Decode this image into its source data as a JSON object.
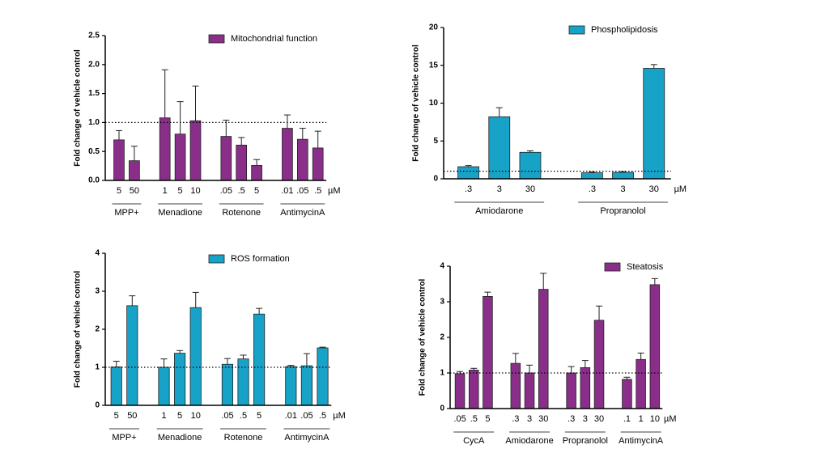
{
  "chart_data": [
    {
      "type": "bar",
      "series_name": "Mitochondrial function",
      "color": "#8a2f89",
      "y_label": "Fold change of vehicle control",
      "x_unit": "µM",
      "ylim": [
        0,
        2.5
      ],
      "yticks": [
        {
          "value": 0,
          "label": "0.0"
        },
        0.5,
        {
          "value": 1,
          "label": "1.0"
        },
        1.5,
        {
          "value": 2,
          "label": "2.0"
        },
        2.5
      ],
      "reference_line": 1,
      "groups": [
        {
          "name": "MPP+",
          "categories": [
            "5",
            "50"
          ],
          "values": [
            0.7,
            0.34
          ],
          "errors": [
            0.16,
            0.25
          ]
        },
        {
          "name": "Menadione",
          "categories": [
            "1",
            "5",
            "10"
          ],
          "values": [
            1.08,
            0.8,
            1.03
          ],
          "errors": [
            0.83,
            0.56,
            0.6
          ]
        },
        {
          "name": "Rotenone",
          "categories": [
            ".05",
            ".5",
            "5"
          ],
          "values": [
            0.76,
            0.61,
            0.26
          ],
          "errors": [
            0.28,
            0.13,
            0.1
          ]
        },
        {
          "name": "AntimycinA",
          "categories": [
            ".01",
            ".05",
            ".5"
          ],
          "values": [
            0.9,
            0.71,
            0.56
          ],
          "errors": [
            0.23,
            0.19,
            0.29
          ]
        }
      ]
    },
    {
      "type": "bar",
      "series_name": "Phospholipidosis",
      "color": "#17a3c7",
      "y_label": "Fold change of vehicle control",
      "x_unit": "µM",
      "ylim": [
        0,
        20
      ],
      "yticks": [
        0,
        5,
        10,
        15,
        20
      ],
      "reference_line": 1,
      "groups": [
        {
          "name": "Amiodarone",
          "categories": [
            ".3",
            "3",
            "30"
          ],
          "values": [
            1.6,
            8.2,
            3.5
          ],
          "errors": [
            0.15,
            1.2,
            0.2
          ]
        },
        {
          "name": "Propranolol",
          "categories": [
            ".3",
            "3",
            "30"
          ],
          "values": [
            0.8,
            0.85,
            14.6
          ],
          "errors": [
            0.1,
            0.1,
            0.5
          ]
        }
      ]
    },
    {
      "type": "bar",
      "series_name": "ROS formation",
      "color": "#17a3c7",
      "y_label": "Fold change of vehicle control",
      "x_unit": "µM",
      "ylim": [
        0,
        4
      ],
      "yticks": [
        0,
        1,
        2,
        3,
        4
      ],
      "reference_line": 1,
      "groups": [
        {
          "name": "MPP+",
          "categories": [
            "5",
            "50"
          ],
          "values": [
            1.01,
            2.62
          ],
          "errors": [
            0.15,
            0.26
          ]
        },
        {
          "name": "Menadione",
          "categories": [
            "1",
            "5",
            "10"
          ],
          "values": [
            1.0,
            1.37,
            2.57
          ],
          "errors": [
            0.22,
            0.07,
            0.4
          ]
        },
        {
          "name": "Rotenone",
          "categories": [
            ".05",
            ".5",
            "5"
          ],
          "values": [
            1.08,
            1.22,
            2.4
          ],
          "errors": [
            0.15,
            0.1,
            0.15
          ]
        },
        {
          "name": "AntimycinA",
          "categories": [
            ".01",
            ".05",
            ".5"
          ],
          "values": [
            1.02,
            1.04,
            1.51
          ],
          "errors": [
            0.03,
            0.32,
            0.02
          ]
        }
      ]
    },
    {
      "type": "bar",
      "series_name": "Steatosis",
      "color": "#8a2f89",
      "y_label": "Fold change of vehicle control",
      "x_unit": "µM",
      "ylim": [
        0,
        4
      ],
      "yticks": [
        0,
        1,
        2,
        3,
        4
      ],
      "reference_line": 1,
      "groups": [
        {
          "name": "CycA",
          "categories": [
            ".05",
            ".5",
            "5"
          ],
          "values": [
            0.98,
            1.08,
            3.15
          ],
          "errors": [
            0.06,
            0.05,
            0.12
          ]
        },
        {
          "name": "Amiodarone",
          "categories": [
            ".3",
            "3",
            "30"
          ],
          "values": [
            1.27,
            1.0,
            3.35
          ],
          "errors": [
            0.28,
            0.22,
            0.45
          ]
        },
        {
          "name": "Propranolol",
          "categories": [
            ".3",
            "3",
            "30"
          ],
          "values": [
            1.0,
            1.15,
            2.48
          ],
          "errors": [
            0.18,
            0.2,
            0.4
          ]
        },
        {
          "name": "AntimycinA",
          "categories": [
            ".1",
            "1",
            "10"
          ],
          "values": [
            0.82,
            1.38,
            3.48
          ],
          "errors": [
            0.06,
            0.18,
            0.17
          ]
        }
      ]
    }
  ]
}
